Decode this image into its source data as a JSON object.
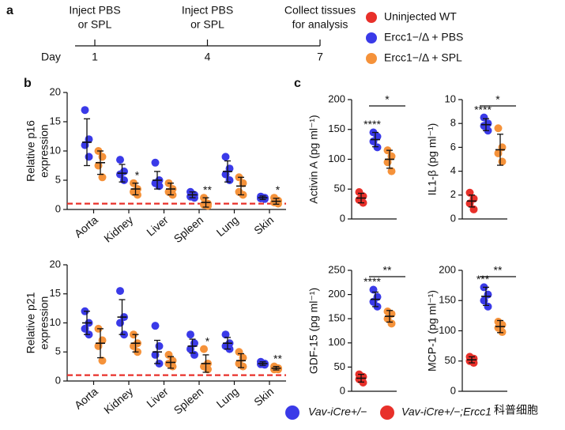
{
  "panel_labels": [
    "a",
    "b",
    "c"
  ],
  "timeline": {
    "day_label": "Day",
    "events": [
      {
        "label": [
          "Inject PBS",
          "or SPL"
        ],
        "day": 1
      },
      {
        "label": [
          "Inject PBS",
          "or SPL"
        ],
        "day": 4
      },
      {
        "label": [
          "Collect tissues",
          "for analysis"
        ],
        "day": 7
      }
    ]
  },
  "legend": [
    {
      "name": "Uninjected WT",
      "color": "#e8302a"
    },
    {
      "name": "Ercc1−/Δ + PBS",
      "color": "#3a3ae8"
    },
    {
      "name": "Ercc1−/Δ + SPL",
      "color": "#f5923a"
    }
  ],
  "bottom_legend": [
    {
      "name": "Vav-iCre+/−",
      "color": "#3a3ae8"
    },
    {
      "name": "Vav-iCre+/−;Ercc1",
      "color": "#e8302a"
    }
  ],
  "watermark": "科普细胞",
  "chart_data": [
    {
      "type": "dot",
      "ylabel": [
        "Relative p16",
        "expression"
      ],
      "categories": [
        "Aorta",
        "Kidney",
        "Liver",
        "Spleen",
        "Lung",
        "Skin"
      ],
      "ylim": [
        0,
        20
      ],
      "yticks": [
        0,
        5,
        10,
        15,
        20
      ],
      "ref_line": 1,
      "ref_color": "#e8302a",
      "series": [
        {
          "color": "#3a3ae8",
          "values": [
            11.5,
            6.2,
            5,
            2.5,
            6.5,
            2
          ],
          "errors": [
            4,
            1.5,
            1.5,
            0.5,
            1.8,
            0.3
          ],
          "points": [
            [
              17,
              12,
              11,
              9
            ],
            [
              8.5,
              6.5,
              6,
              5
            ],
            [
              8,
              5,
              4.5,
              4
            ],
            [
              3,
              2.5,
              2.2,
              2
            ],
            [
              9,
              7,
              6,
              5
            ],
            [
              2.2,
              2,
              1.9,
              1.8
            ]
          ]
        },
        {
          "color": "#f5923a",
          "values": [
            8,
            3.5,
            3.5,
            1.2,
            4,
            1.4
          ],
          "errors": [
            2,
            1,
            1,
            0.8,
            1.5,
            0.5
          ],
          "points": [
            [
              10,
              9,
              7.5,
              5.5
            ],
            [
              4.5,
              3.5,
              3,
              2.5
            ],
            [
              4.5,
              3.5,
              3,
              2.5
            ],
            [
              2,
              1,
              0.8,
              0.6
            ],
            [
              5.5,
              4.5,
              3,
              2.5
            ],
            [
              2,
              1.5,
              1.2,
              1
            ]
          ],
          "stars": [
            null,
            "*",
            null,
            "**",
            null,
            "*"
          ]
        }
      ]
    },
    {
      "type": "dot",
      "ylabel": [
        "Relative p21",
        "expression"
      ],
      "categories": [
        "Aorta",
        "Kidney",
        "Liver",
        "Spleen",
        "Lung",
        "Skin"
      ],
      "ylim": [
        0,
        20
      ],
      "yticks": [
        0,
        5,
        10,
        15,
        20
      ],
      "ref_line": 1,
      "ref_color": "#e8302a",
      "series": [
        {
          "color": "#3a3ae8",
          "values": [
            10,
            11,
            5,
            6,
            6.5,
            3
          ],
          "errors": [
            2,
            3,
            2,
            1.2,
            1,
            0.3
          ],
          "points": [
            [
              12,
              10,
              9,
              8
            ],
            [
              15.5,
              11,
              10,
              8
            ],
            [
              9.5,
              6,
              4.5,
              3
            ],
            [
              8,
              6.5,
              5.5,
              4.5
            ],
            [
              8,
              6.5,
              6,
              5.5
            ],
            [
              3.3,
              3,
              2.9,
              2.8
            ]
          ]
        },
        {
          "color": "#f5923a",
          "values": [
            6.5,
            6.5,
            3.2,
            3,
            3.5,
            2.2
          ],
          "errors": [
            2.5,
            1.5,
            1,
            1.5,
            1.2,
            0.3
          ],
          "points": [
            [
              9,
              7,
              6,
              3.5
            ],
            [
              8,
              6.5,
              6,
              5
            ],
            [
              4.5,
              3.5,
              3,
              2.5
            ],
            [
              5.5,
              3,
              2.5,
              2
            ],
            [
              5,
              4,
              3,
              2.5
            ],
            [
              2.5,
              2.2,
              2,
              2
            ]
          ],
          "stars": [
            null,
            null,
            null,
            "*",
            null,
            "**"
          ]
        }
      ]
    },
    {
      "type": "dot",
      "ylabel": [
        "Activin A (pg ml⁻¹)"
      ],
      "ylim": [
        0,
        200
      ],
      "yticks": [
        0,
        50,
        100,
        150,
        200
      ],
      "series": [
        {
          "color": "#e8302a",
          "values": [
            35
          ],
          "errors": [
            8
          ],
          "points": [
            [
              45,
              38,
              32,
              27
            ]
          ]
        },
        {
          "color": "#3a3ae8",
          "values": [
            133
          ],
          "errors": [
            12
          ],
          "points": [
            [
              145,
              138,
              130,
              120
            ]
          ],
          "stars": [
            "****"
          ]
        },
        {
          "color": "#f5923a",
          "values": [
            100
          ],
          "errors": [
            15
          ],
          "points": [
            [
              115,
              105,
              95,
              80
            ]
          ]
        }
      ],
      "bracket": "*"
    },
    {
      "type": "dot",
      "ylabel": [
        "IL1-β (pg ml⁻¹)"
      ],
      "ylim": [
        0,
        10
      ],
      "yticks": [
        0,
        2,
        4,
        6,
        8,
        10
      ],
      "series": [
        {
          "color": "#e8302a",
          "values": [
            1.5
          ],
          "errors": [
            0.5
          ],
          "points": [
            [
              2.2,
              1.7,
              1.3,
              0.8
            ]
          ]
        },
        {
          "color": "#3a3ae8",
          "values": [
            7.9
          ],
          "errors": [
            0.5
          ],
          "points": [
            [
              8.5,
              8,
              7.8,
              7.4
            ]
          ],
          "stars": [
            "****"
          ]
        },
        {
          "color": "#f5923a",
          "values": [
            5.8
          ],
          "errors": [
            1.3
          ],
          "points": [
            [
              7.6,
              6,
              5.5,
              4.8
            ]
          ]
        }
      ],
      "bracket": "*"
    },
    {
      "type": "dot",
      "ylabel": [
        "GDF-15 (pg ml⁻¹)"
      ],
      "ylim": [
        0,
        250
      ],
      "yticks": [
        0,
        50,
        100,
        150,
        200,
        250
      ],
      "series": [
        {
          "color": "#e8302a",
          "values": [
            27
          ],
          "errors": [
            8
          ],
          "points": [
            [
              35,
              30,
              25,
              18
            ]
          ]
        },
        {
          "color": "#3a3ae8",
          "values": [
            190
          ],
          "errors": [
            15
          ],
          "points": [
            [
              210,
              195,
              185,
              175
            ]
          ],
          "stars": [
            "****"
          ]
        },
        {
          "color": "#f5923a",
          "values": [
            155
          ],
          "errors": [
            12
          ],
          "points": [
            [
              165,
              160,
              150,
              140
            ]
          ]
        }
      ],
      "bracket": "**"
    },
    {
      "type": "dot",
      "ylabel": [
        "MCP-1 (pg ml⁻¹)"
      ],
      "ylim": [
        0,
        200
      ],
      "yticks": [
        0,
        50,
        100,
        150,
        200
      ],
      "series": [
        {
          "color": "#e8302a",
          "values": [
            52
          ],
          "errors": [
            5
          ],
          "points": [
            [
              57,
              54,
              50,
              47
            ]
          ]
        },
        {
          "color": "#3a3ae8",
          "values": [
            157
          ],
          "errors": [
            15
          ],
          "points": [
            [
              172,
              160,
              150,
              140
            ]
          ],
          "stars": [
            "***"
          ]
        },
        {
          "color": "#f5923a",
          "values": [
            107
          ],
          "errors": [
            10
          ],
          "points": [
            [
              115,
              110,
              105,
              98
            ]
          ]
        }
      ],
      "bracket": "**"
    }
  ]
}
